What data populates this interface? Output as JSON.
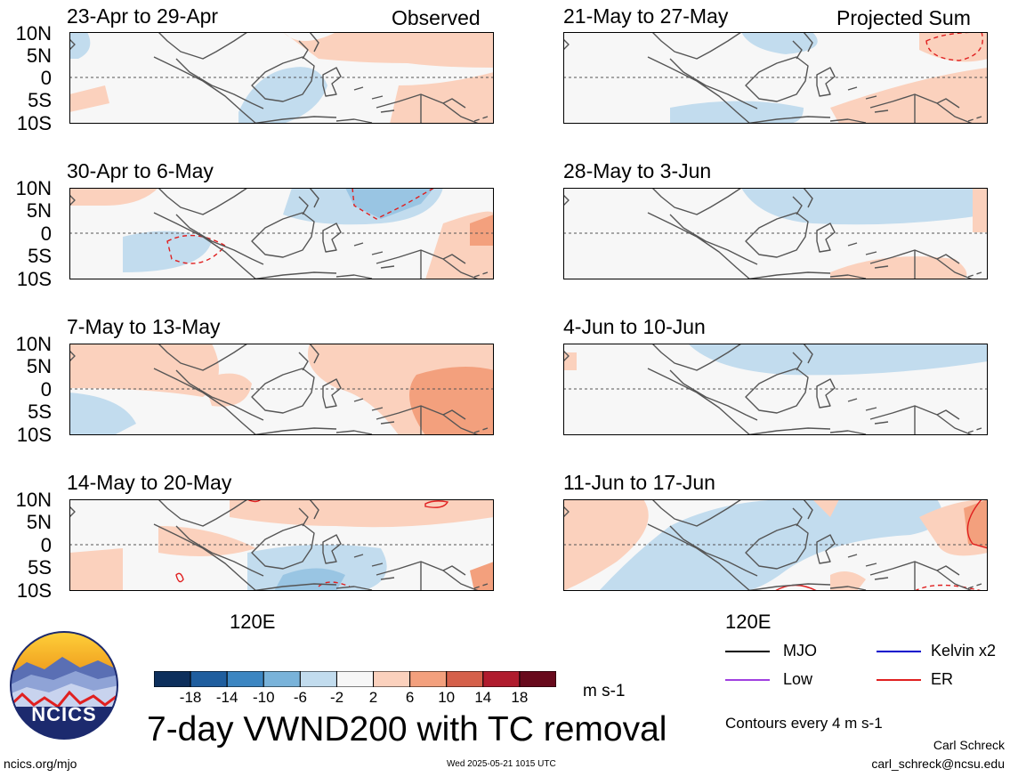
{
  "panels": [
    {
      "title": "23-Apr to 29-Apr",
      "tag": "Observed"
    },
    {
      "title": "30-Apr to 6-May",
      "tag": ""
    },
    {
      "title": "7-May to 13-May",
      "tag": ""
    },
    {
      "title": "14-May to 20-May",
      "tag": ""
    },
    {
      "title": "21-May to 27-May",
      "tag": "Projected Sum"
    },
    {
      "title": "28-May to 3-Jun",
      "tag": ""
    },
    {
      "title": "4-Jun to 10-Jun",
      "tag": ""
    },
    {
      "title": "11-Jun to 17-Jun",
      "tag": ""
    }
  ],
  "lat_labels": [
    "10N",
    "5N",
    "0",
    "5S",
    "10S"
  ],
  "lon_label": "120E",
  "colorbar": {
    "ticks": [
      "-18",
      "-14",
      "-10",
      "-6",
      "-2",
      "2",
      "6",
      "10",
      "14",
      "18"
    ],
    "colors": [
      "#0d2f5c",
      "#1f5e9f",
      "#3c86c2",
      "#79b3da",
      "#c2dcee",
      "#f7f7f7",
      "#fbd1bd",
      "#f3a07d",
      "#d5604a",
      "#b01c2e",
      "#680a1c"
    ],
    "units": "m s-1"
  },
  "legend": {
    "items": [
      {
        "label": "MJO",
        "color": "#000000"
      },
      {
        "label": "Kelvin x2",
        "color": "#0000cc"
      },
      {
        "label": "Low",
        "color": "#a040e0"
      },
      {
        "label": "ER",
        "color": "#e02020"
      }
    ],
    "note": "Contours every 4 m s-1"
  },
  "main_title": "7-day VWND200 with TC removal",
  "logo_text": "NCICS",
  "footer": {
    "url": "ncics.org/mjo",
    "timestamp": "Wed 2025-05-21 1015 UTC",
    "author": "Carl Schreck",
    "email": "carl_schreck@ncsu.edu"
  }
}
